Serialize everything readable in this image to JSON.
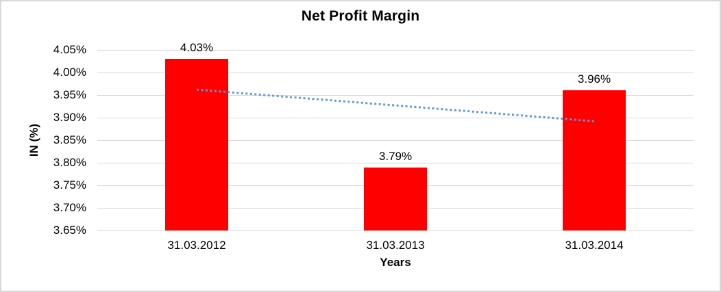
{
  "chart_data": {
    "type": "bar",
    "title": "Net Profit Margin",
    "xlabel": "Years",
    "ylabel": "IN (%)",
    "categories": [
      "31.03.2012",
      "31.03.2013",
      "31.03.2014"
    ],
    "values": [
      4.03,
      3.79,
      3.96
    ],
    "data_labels": [
      "4.03%",
      "3.79%",
      "3.96%"
    ],
    "ylim": [
      3.65,
      4.05
    ],
    "ytick_labels": [
      "4.05%",
      "4.00%",
      "3.95%",
      "3.90%",
      "3.85%",
      "3.80%",
      "3.75%",
      "3.70%",
      "3.65%"
    ],
    "ytick_values": [
      4.05,
      4.0,
      3.95,
      3.9,
      3.85,
      3.8,
      3.75,
      3.7,
      3.65
    ],
    "grid": true,
    "legend": "none",
    "bar_color": "#ff0000",
    "gridline_color": "#d9d9d9",
    "text_color": "#000000",
    "trendline": {
      "type": "linear",
      "style": "dotted",
      "color": "#5b9bd5",
      "start_value": 3.962,
      "end_value": 3.892
    }
  }
}
